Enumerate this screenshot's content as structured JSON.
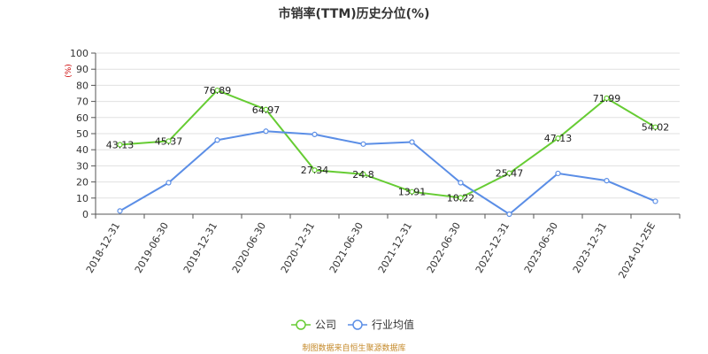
{
  "chart_data": {
    "type": "line",
    "title": "市销率(TTM)历史分位(%)",
    "y_unit": "(%)",
    "ylim": [
      0,
      100
    ],
    "y_ticks": [
      0,
      10,
      20,
      30,
      40,
      50,
      60,
      70,
      80,
      90,
      100
    ],
    "grid": true,
    "legend_position": "bottom-center",
    "categories": [
      "2018-12-31",
      "2019-06-30",
      "2019-12-31",
      "2020-06-30",
      "2020-12-31",
      "2021-06-30",
      "2021-12-31",
      "2022-06-30",
      "2022-12-31",
      "2023-06-30",
      "2023-12-31",
      "2024-01-25E"
    ],
    "series": [
      {
        "name": "公司",
        "color": "#66cc33",
        "values": [
          43.13,
          45.37,
          76.89,
          64.97,
          27.34,
          24.8,
          13.91,
          10.22,
          25.47,
          47.13,
          71.99,
          54.02
        ],
        "labels": [
          "43.13",
          "45.37",
          "76.89",
          "64.97",
          "27.34",
          "24.8",
          "13.91",
          "10.22",
          "25.47",
          "47.13",
          "71.99",
          "54.02"
        ]
      },
      {
        "name": "行业均值",
        "color": "#5b8ee6",
        "values": [
          2,
          19.5,
          46,
          51.5,
          49.5,
          43.5,
          44.8,
          19.5,
          0,
          25.3,
          20.8,
          8
        ]
      }
    ]
  },
  "source_note": "制图数据来自恒生聚源数据库"
}
